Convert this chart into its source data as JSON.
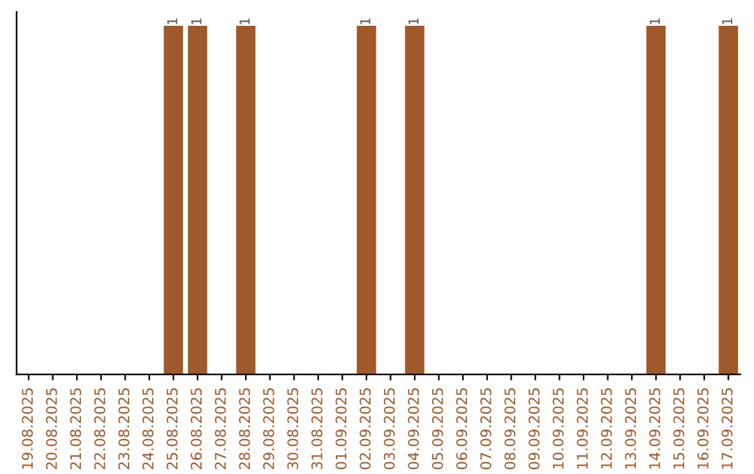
{
  "chart_data": {
    "type": "bar",
    "categories": [
      "19.08.2025",
      "20.08.2025",
      "21.08.2025",
      "22.08.2025",
      "23.08.2025",
      "24.08.2025",
      "25.08.2025",
      "26.08.2025",
      "27.08.2025",
      "28.08.2025",
      "29.08.2025",
      "30.08.2025",
      "31.08.2025",
      "01.09.2025",
      "02.09.2025",
      "03.09.2025",
      "04.09.2025",
      "05.09.2025",
      "06.09.2025",
      "07.09.2025",
      "08.09.2025",
      "09.09.2025",
      "10.09.2025",
      "11.09.2025",
      "12.09.2025",
      "13.09.2025",
      "14.09.2025",
      "15.09.2025",
      "16.09.2025",
      "17.09.2025"
    ],
    "values": [
      0,
      0,
      0,
      0,
      0,
      0,
      1,
      1,
      0,
      1,
      0,
      0,
      0,
      0,
      1,
      0,
      1,
      0,
      0,
      0,
      0,
      0,
      0,
      0,
      0,
      0,
      1,
      0,
      0,
      1
    ],
    "value_labels": [
      null,
      null,
      null,
      null,
      null,
      null,
      "1",
      "1",
      null,
      "1",
      null,
      null,
      null,
      null,
      "1",
      null,
      "1",
      null,
      null,
      null,
      null,
      null,
      null,
      null,
      null,
      null,
      "1",
      null,
      null,
      "1"
    ],
    "color": "#a0592a",
    "tick_labels": "x",
    "grid": false,
    "legend": false
  }
}
